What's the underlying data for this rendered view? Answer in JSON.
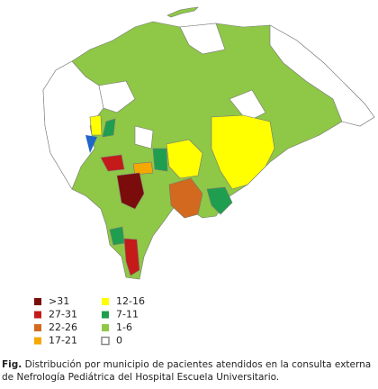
{
  "legend": {
    "items": [
      {
        "label": ">31",
        "color": "#7b0c0c"
      },
      {
        "label": "27-31",
        "color": "#c41a1a"
      },
      {
        "label": "22-26",
        "color": "#d2691e"
      },
      {
        "label": "17-21",
        "color": "#f5a800"
      },
      {
        "label": "12-16",
        "color": "#ffff00"
      },
      {
        "label": "7-11",
        "color": "#1f9e4f"
      },
      {
        "label": "1-6",
        "color": "#8fc746"
      },
      {
        "label": "0",
        "color": "#ffffff"
      }
    ]
  },
  "caption": {
    "prefix": "Fig.",
    "text": "Distribución por municipio de pacientes atendidos en la consulta externa de Nefrología Pediátrica del Hospital Escuela Universitario."
  }
}
